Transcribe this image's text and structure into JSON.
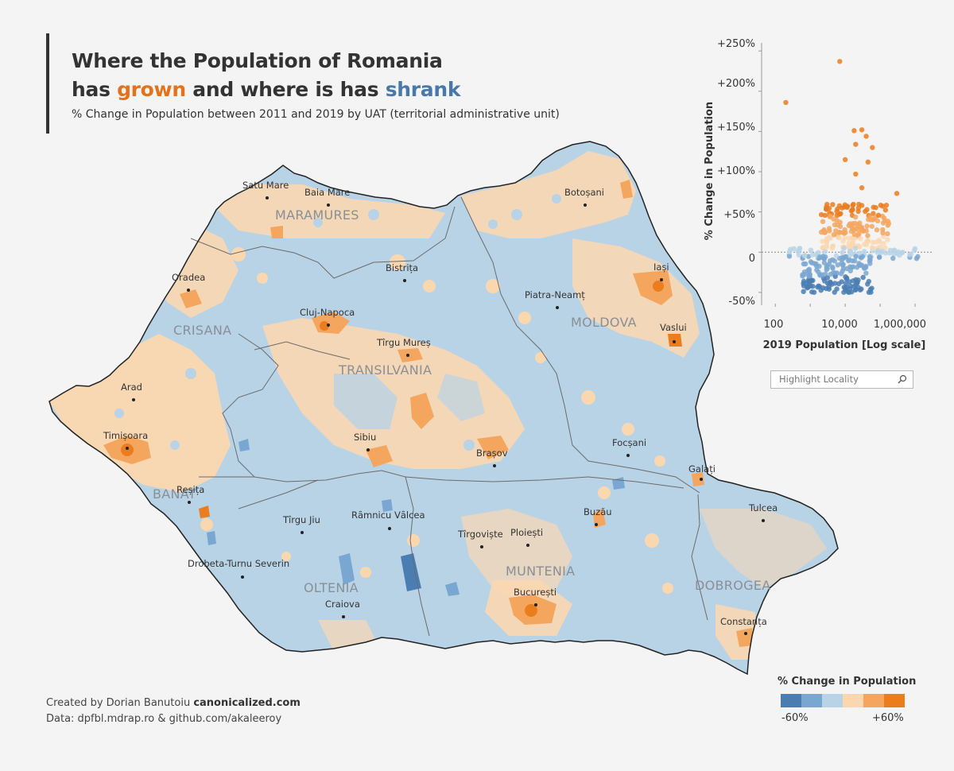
{
  "header": {
    "title_line1": "Where the Population of Romania",
    "title_line2_prefix": "has ",
    "title_line2_grown": "grown",
    "title_line2_middle": " and where is has ",
    "title_line2_shrank": "shrank",
    "subtitle": "% Change in Population between 2011 and 2019 by UAT (territorial administrative unit)"
  },
  "colors": {
    "background": "#f4f4f4",
    "grown": "#e0731b",
    "shrank": "#4a78a8",
    "scale": [
      "#4a7eb3",
      "#7aa7d1",
      "#b9d3e6",
      "#fbd7b0",
      "#f4a65f",
      "#ea7d1d"
    ]
  },
  "map": {
    "cities": [
      {
        "name": "Satu Mare"
      },
      {
        "name": "Baia Mare"
      },
      {
        "name": "Botoșani"
      },
      {
        "name": "Oradea"
      },
      {
        "name": "Bistrița"
      },
      {
        "name": "Iași"
      },
      {
        "name": "Piatra-Neamț"
      },
      {
        "name": "Cluj-Napoca"
      },
      {
        "name": "Vaslui"
      },
      {
        "name": "Tîrgu Mureș"
      },
      {
        "name": "Arad"
      },
      {
        "name": "Timișoara"
      },
      {
        "name": "Sibiu"
      },
      {
        "name": "Brașov"
      },
      {
        "name": "Focșani"
      },
      {
        "name": "Galați"
      },
      {
        "name": "Reșița"
      },
      {
        "name": "Tulcea"
      },
      {
        "name": "Buzău"
      },
      {
        "name": "Rȃmnicu Vȃlcea"
      },
      {
        "name": "Tîrgu Jiu"
      },
      {
        "name": "Tîrgoviște"
      },
      {
        "name": "Ploiești"
      },
      {
        "name": "Drobeta-Turnu Severin"
      },
      {
        "name": "București"
      },
      {
        "name": "Craiova"
      },
      {
        "name": "Constanța"
      }
    ],
    "regions": [
      {
        "name": "MARAMURES"
      },
      {
        "name": "CRISANA"
      },
      {
        "name": "MOLDOVA"
      },
      {
        "name": "TRANSILVANIA"
      },
      {
        "name": "BANAT"
      },
      {
        "name": "MUNTENIA"
      },
      {
        "name": "OLTENIA"
      },
      {
        "name": "DOBROGEA"
      }
    ]
  },
  "scatter": {
    "y_axis_title": "% Change in Population",
    "x_axis_title": "2019 Population [Log scale]",
    "y_ticks": [
      "+250%",
      "+200%",
      "+150%",
      "+100%",
      "+50%",
      "0",
      "-50%"
    ],
    "x_ticks": [
      "100",
      "10,000",
      "1,000,000"
    ]
  },
  "chart_data": {
    "type": "scatter",
    "title": "",
    "xlabel": "2019 Population [Log scale]",
    "ylabel": "% Change in Population",
    "x_scale": "log",
    "xlim": [
      50,
      3000000
    ],
    "ylim": [
      -60,
      260
    ],
    "x_ticks": [
      100,
      10000,
      1000000
    ],
    "y_ticks": [
      -50,
      0,
      50,
      100,
      150,
      200,
      250
    ],
    "notable_points": [
      {
        "x": 7000,
        "y": 237
      },
      {
        "x": 200,
        "y": 186
      },
      {
        "x": 30000,
        "y": 152
      },
      {
        "x": 40000,
        "y": 144
      },
      {
        "x": 18000,
        "y": 151
      },
      {
        "x": 60000,
        "y": 130
      },
      {
        "x": 20000,
        "y": 134
      },
      {
        "x": 10000,
        "y": 115
      },
      {
        "x": 45000,
        "y": 112
      },
      {
        "x": 20000,
        "y": 97
      },
      {
        "x": 300000,
        "y": 73
      },
      {
        "x": 30000,
        "y": 80
      }
    ],
    "bulk": [
      {
        "name": "grown",
        "x_range": [
          2000,
          200000
        ],
        "y_range": [
          5,
          60
        ]
      },
      {
        "name": "shrank",
        "x_range": [
          600,
          60000
        ],
        "y_range": [
          -50,
          -5
        ]
      }
    ]
  },
  "search": {
    "placeholder": "Highlight Locality"
  },
  "legend": {
    "title": "% Change in Population",
    "min_label": "-60%",
    "max_label": "+60%"
  },
  "footer": {
    "credit_prefix": "Created by Dorian Banutoiu ",
    "credit_site": "canonicalized.com",
    "data_source": "Data: dpfbl.mdrap.ro & github.com/akaleeroy"
  }
}
